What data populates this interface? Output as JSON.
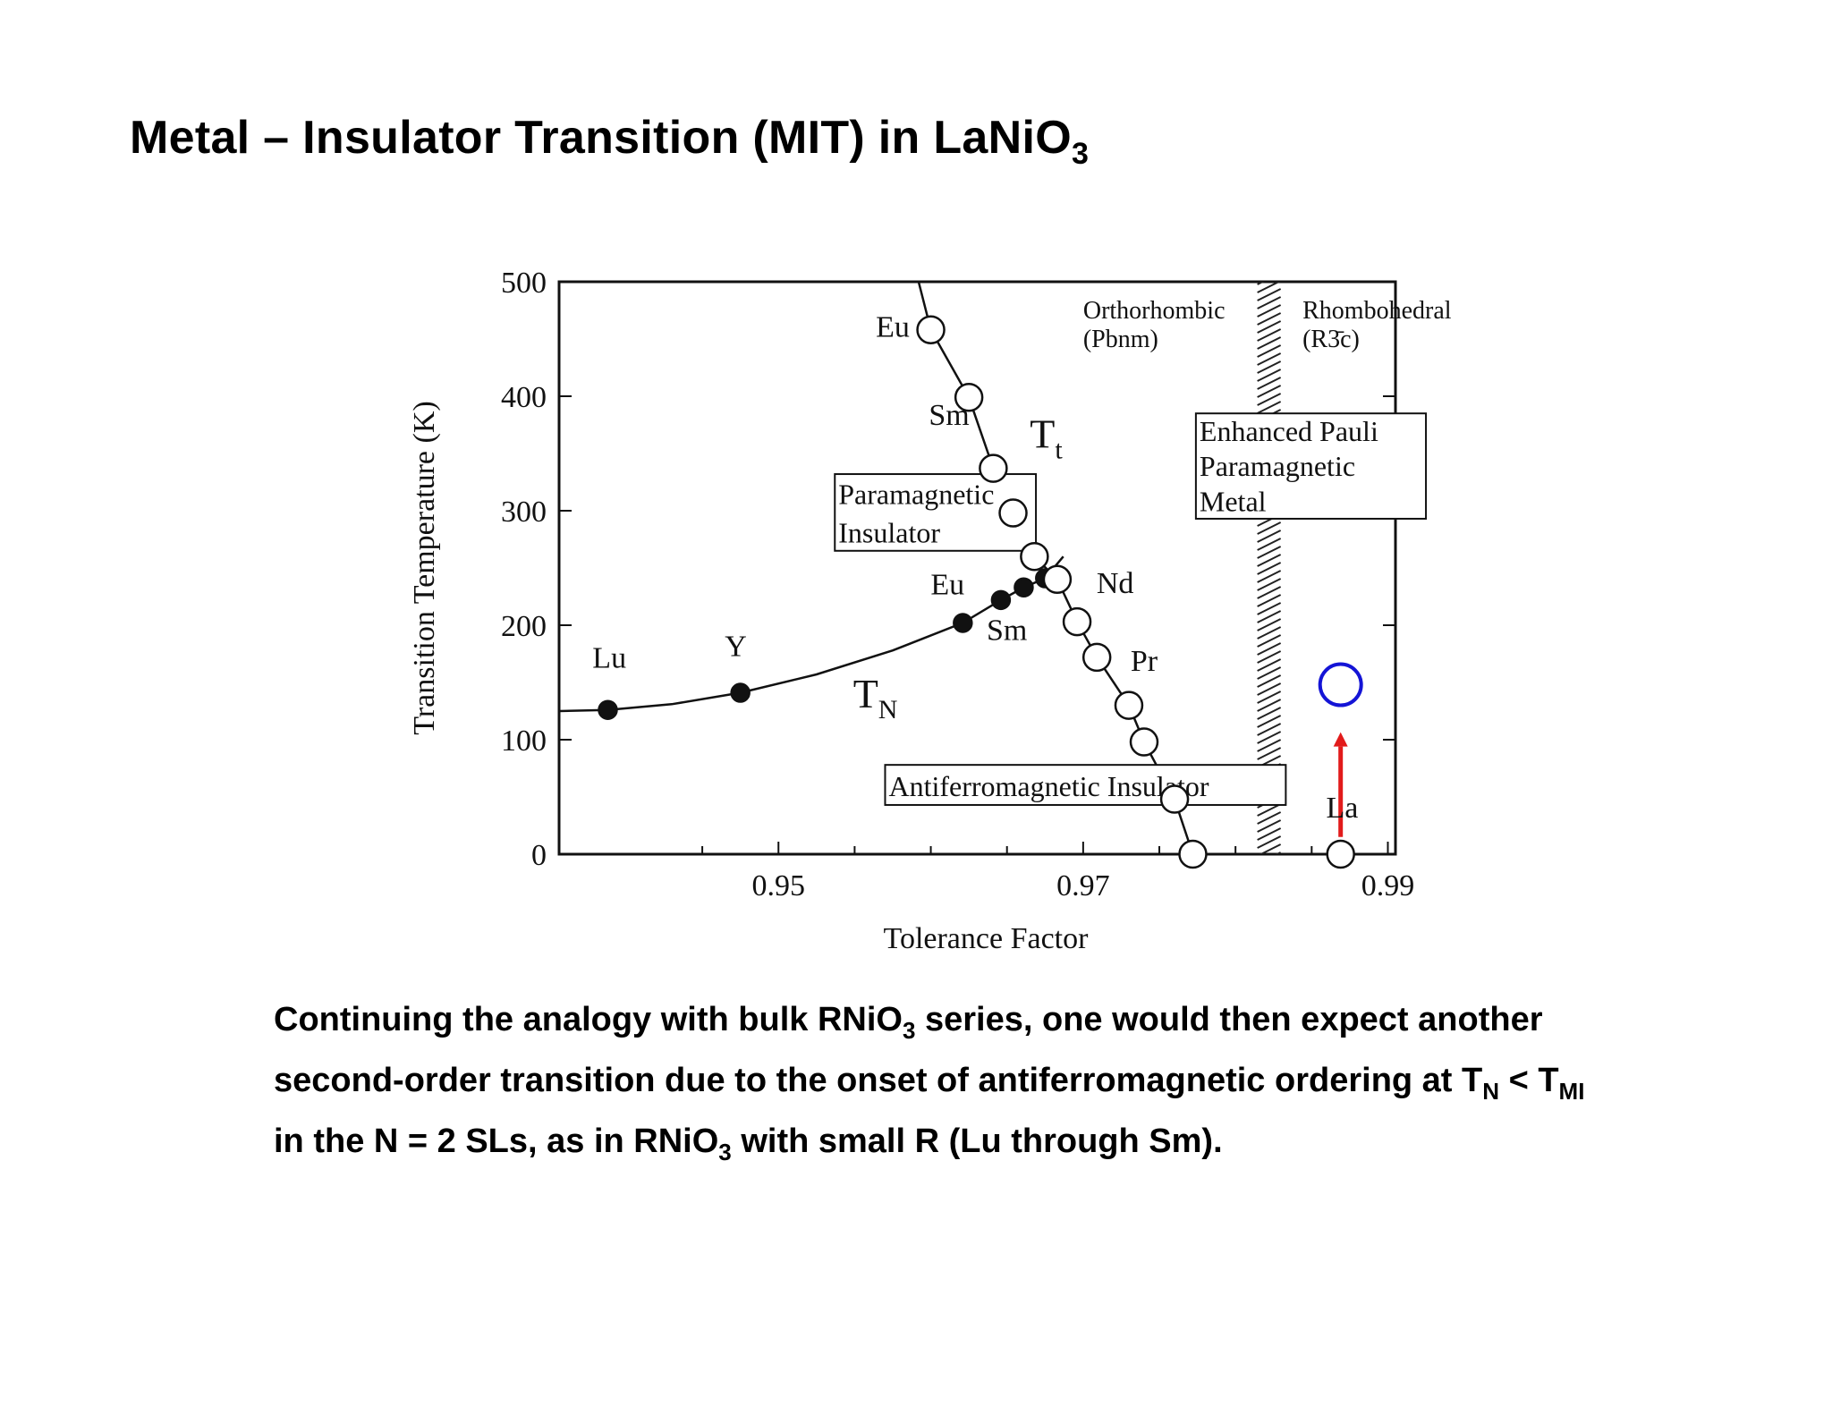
{
  "slide": {
    "title": "Metal – Insulator Transition (MIT) in LaNiO",
    "title_sub": "3"
  },
  "caption": {
    "l1_a": "Continuing the analogy with bulk RNiO",
    "l1_sub": "3",
    "l1_b": " series, one would then expect another",
    "l2_a": "second-order transition due to the onset of antiferromagnetic ordering at T",
    "l2_sub1": "N",
    "l2_b": " < T",
    "l2_sub2": "MI",
    "l3_a": "in the N = 2 SLs,  as in RNiO",
    "l3_sub": "3",
    "l3_b": " with small R (Lu through Sm)."
  },
  "chart_data": {
    "type": "scatter",
    "xlabel": "Tolerance Factor",
    "ylabel": "Transition Temperature (K)",
    "xlim": [
      0.9356,
      0.9905
    ],
    "ylim": [
      0,
      500
    ],
    "xticks": [
      0.95,
      0.97,
      0.99
    ],
    "xtick_labels": [
      "0.95",
      "0.97",
      "0.99"
    ],
    "yticks": [
      0,
      100,
      200,
      300,
      400,
      500
    ],
    "ytick_labels": [
      "0",
      "100",
      "200",
      "300",
      "400",
      "500"
    ],
    "grid": false,
    "series": [
      {
        "name": "T_N",
        "marker": "filled-circle",
        "color": "#111111",
        "points": [
          [
            0.9388,
            126
          ],
          [
            0.9475,
            141
          ],
          [
            0.9621,
            202
          ],
          [
            0.9646,
            222
          ],
          [
            0.9661,
            233
          ],
          [
            0.9675,
            241
          ]
        ]
      },
      {
        "name": "T_t",
        "marker": "open-circle",
        "color": "#111111",
        "points": [
          [
            0.96,
            458
          ],
          [
            0.9625,
            399
          ],
          [
            0.9641,
            337
          ],
          [
            0.9654,
            298
          ],
          [
            0.9668,
            260
          ],
          [
            0.9683,
            240
          ],
          [
            0.9696,
            203
          ],
          [
            0.9709,
            172
          ],
          [
            0.973,
            130
          ],
          [
            0.974,
            98
          ],
          [
            0.976,
            48
          ],
          [
            0.9772,
            0
          ],
          [
            0.9869,
            0
          ]
        ]
      },
      {
        "name": "",
        "marker": "open-circle",
        "color": "#1414d6",
        "points": [
          [
            0.9869,
            148
          ]
        ]
      }
    ],
    "curves": [
      {
        "series": "T_N",
        "points": [
          [
            0.9356,
            125
          ],
          [
            0.9388,
            126
          ],
          [
            0.943,
            131
          ],
          [
            0.9475,
            141
          ],
          [
            0.9525,
            157
          ],
          [
            0.9575,
            178
          ],
          [
            0.9621,
            202
          ],
          [
            0.9646,
            222
          ],
          [
            0.9661,
            233
          ],
          [
            0.9675,
            241
          ],
          [
            0.9687,
            260
          ]
        ]
      },
      {
        "series": "T_t",
        "points": [
          [
            0.9592,
            500
          ],
          [
            0.96,
            458
          ],
          [
            0.9625,
            399
          ],
          [
            0.9641,
            337
          ],
          [
            0.9654,
            298
          ],
          [
            0.9668,
            260
          ],
          [
            0.9683,
            240
          ],
          [
            0.9696,
            203
          ],
          [
            0.9709,
            172
          ],
          [
            0.973,
            130
          ],
          [
            0.974,
            98
          ],
          [
            0.976,
            48
          ],
          [
            0.9772,
            0
          ]
        ]
      }
    ],
    "phase_boundary": {
      "x": 0.9822,
      "style": "hatched"
    },
    "arrow": {
      "x": 0.9869,
      "from_y": 15,
      "to_y": 105,
      "color": "#e21b1b"
    },
    "point_labels": [
      {
        "text": "Lu",
        "x": 0.9389,
        "y": 163
      },
      {
        "text": "Y",
        "x": 0.9472,
        "y": 173
      },
      {
        "text": "Eu",
        "x": 0.9611,
        "y": 227
      },
      {
        "text": "Sm",
        "x": 0.965,
        "y": 187
      },
      {
        "text": "Eu",
        "x": 0.9575,
        "y": 452
      },
      {
        "text": "Sm",
        "x": 0.9612,
        "y": 375
      },
      {
        "text": "Nd",
        "x": 0.9721,
        "y": 228
      },
      {
        "text": "Pr",
        "x": 0.974,
        "y": 160
      },
      {
        "text": "La",
        "x": 0.987,
        "y": 32
      }
    ],
    "curve_labels": [
      {
        "text": "T",
        "sub": "t",
        "x": 0.9665,
        "y": 355
      },
      {
        "text": "T",
        "sub": "N",
        "x": 0.9549,
        "y": 128
      }
    ],
    "regions": [
      {
        "lines": [
          "Paramagnetic",
          "Insulator"
        ],
        "x0": 0.9537,
        "x1": 0.9669,
        "y0": 265,
        "y1": 332,
        "box": true
      },
      {
        "lines": [
          "Antiferromagnetic Insulator"
        ],
        "x0": 0.957,
        "x1": 0.9833,
        "y0": 43,
        "y1": 78,
        "box": true
      },
      {
        "lines": [
          "Enhanced Pauli",
          "Paramagnetic",
          "Metal"
        ],
        "x0": 0.9774,
        "x1": 0.9925,
        "y0": 293,
        "y1": 385,
        "box": true
      },
      {
        "lines": [
          "Orthorhombic",
          "(Pbnm)"
        ],
        "x": 0.97,
        "y": 468,
        "box": false
      },
      {
        "lines": [
          "Rhombohedral",
          "(R3̄c)"
        ],
        "x": 0.9844,
        "y": 468,
        "box": false
      }
    ]
  }
}
